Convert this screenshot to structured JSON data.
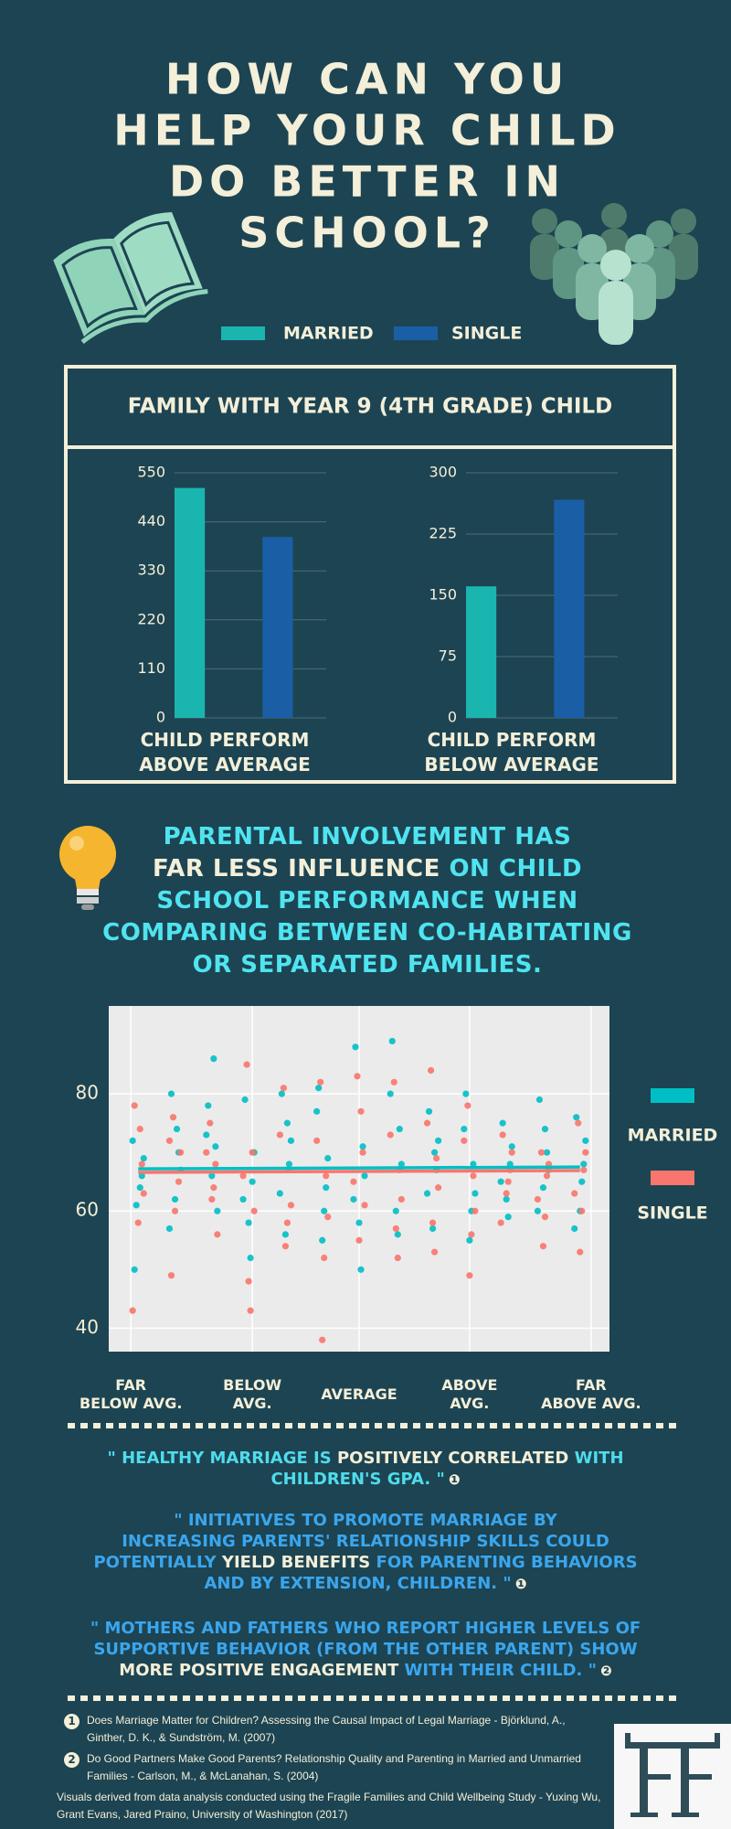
{
  "title_lines": [
    "HOW CAN YOU",
    "HELP YOUR CHILD",
    "DO BETTER IN",
    "SCHOOL?"
  ],
  "panel_title": "FAMILY WITH YEAR 9 (4TH GRADE) CHILD",
  "chart_data": [
    {
      "type": "bar",
      "xlabel": "CHILD PERFORM\nABOVE AVERAGE",
      "ylim": [
        0,
        550
      ],
      "yticks": [
        0,
        110,
        220,
        330,
        440,
        550
      ],
      "grid": true,
      "series": [
        {
          "name": "MARRIED",
          "color": "#1bb5b0",
          "values": [
            516
          ]
        },
        {
          "name": "SINGLE",
          "color": "#1a5ea6",
          "values": [
            406
          ]
        }
      ]
    },
    {
      "type": "bar",
      "xlabel": "CHILD PERFORM\nBELOW AVERAGE",
      "ylim": [
        0,
        300
      ],
      "yticks": [
        0,
        75,
        150,
        225,
        300
      ],
      "grid": true,
      "series": [
        {
          "color": "#1bb5b0",
          "values": [
            161
          ]
        },
        {
          "color": "#1a5ea6",
          "values": [
            267
          ]
        }
      ]
    },
    {
      "type": "scatter",
      "xlim": [
        0.2,
        13.8
      ],
      "ylim": [
        36,
        95
      ],
      "yticks": [
        40,
        60,
        80
      ],
      "grid": true,
      "xticks": [
        {
          "value": 0.8,
          "label": "FAR\nBELOW AVG."
        },
        {
          "value": 4.1,
          "label": "BELOW\nAVG."
        },
        {
          "value": 7,
          "label": "AVERAGE"
        },
        {
          "value": 10,
          "label": "ABOVE\nAVG."
        },
        {
          "value": 13.3,
          "label": "FAR\nABOVE AVG."
        }
      ],
      "series": [
        {
          "name": "MARRIED",
          "color": "#00bfc4",
          "x": [
            0.85,
            1.1,
            0.95,
            1.15,
            0.9,
            1.05,
            1.9,
            2.1,
            2.0,
            2.15,
            1.85,
            2.05,
            2.9,
            3.1,
            3.0,
            3.15,
            2.85,
            3.05,
            3.9,
            4.1,
            4.0,
            4.15,
            3.85,
            4.05,
            4.9,
            5.1,
            5.0,
            5.15,
            4.85,
            5.05,
            5.9,
            6.1,
            6.0,
            6.15,
            5.85,
            6.05,
            6.9,
            7.1,
            7.0,
            7.15,
            6.85,
            7.05,
            7.9,
            8.1,
            8.0,
            8.15,
            7.85,
            8.05,
            8.9,
            9.1,
            9.0,
            9.15,
            8.85,
            9.05,
            9.9,
            10.1,
            10.0,
            10.15,
            9.85,
            10.05,
            10.9,
            11.1,
            11.0,
            11.15,
            10.85,
            11.05,
            11.9,
            12.1,
            12.0,
            12.15,
            11.85,
            12.05,
            12.9,
            13.1,
            13.0,
            13.15,
            12.85,
            13.05
          ],
          "values": [
            72,
            66,
            61,
            69,
            50,
            64,
            80,
            70,
            62,
            67,
            57,
            74,
            78,
            71,
            66,
            60,
            73,
            86,
            79,
            65,
            58,
            70,
            62,
            52,
            80,
            68,
            56,
            72,
            63,
            75,
            81,
            64,
            55,
            69,
            77,
            60,
            88,
            71,
            58,
            66,
            62,
            50,
            89,
            74,
            60,
            68,
            80,
            56,
            77,
            67,
            57,
            72,
            63,
            70,
            80,
            68,
            55,
            63,
            74,
            60,
            75,
            68,
            62,
            71,
            65,
            59,
            79,
            70,
            64,
            67,
            60,
            74,
            76,
            68,
            60,
            72,
            57,
            65
          ],
          "trend": {
            "x": [
              1,
              13
            ],
            "values": [
              67.2,
              67.5
            ]
          }
        },
        {
          "name": "SINGLE",
          "color": "#f8766d",
          "x": [
            0.9,
            1.1,
            1.0,
            1.15,
            0.85,
            1.05,
            1.95,
            2.1,
            1.9,
            2.15,
            2.0,
            1.85,
            2.95,
            3.1,
            3.0,
            2.85,
            3.15,
            3.05,
            3.95,
            4.1,
            4.0,
            3.85,
            4.15,
            4.05,
            4.95,
            5.1,
            5.0,
            4.85,
            5.15,
            5.05,
            5.95,
            6.1,
            6.0,
            5.85,
            6.15,
            6.05,
            6.95,
            7.1,
            7.0,
            6.85,
            7.15,
            7.05,
            7.95,
            8.1,
            8.0,
            7.85,
            8.15,
            8.05,
            8.95,
            9.1,
            9.0,
            8.85,
            9.15,
            9.05,
            9.95,
            10.1,
            10.0,
            9.85,
            10.15,
            10.05,
            10.9,
            11.1,
            11.0,
            11.15,
            10.85,
            11.05,
            11.95,
            12.1,
            12.0,
            11.85,
            12.15,
            12.05,
            12.95,
            13.1,
            13.0,
            12.85,
            13.15,
            13.05
          ],
          "values": [
            78,
            68,
            58,
            63,
            43,
            74,
            76,
            65,
            49,
            70,
            60,
            72,
            75,
            68,
            62,
            70,
            56,
            64,
            85,
            70,
            48,
            66,
            60,
            43,
            81,
            67,
            54,
            73,
            61,
            58,
            82,
            66,
            38,
            72,
            59,
            52,
            83,
            70,
            55,
            65,
            61,
            77,
            82,
            67,
            57,
            73,
            62,
            52,
            84,
            69,
            58,
            75,
            64,
            53,
            78,
            66,
            49,
            72,
            60,
            56,
            73,
            67,
            63,
            70,
            58,
            65,
            70,
            66,
            54,
            62,
            68,
            59,
            75,
            67,
            53,
            63,
            70,
            60
          ],
          "trend": {
            "x": [
              1,
              13
            ],
            "values": [
              66.6,
              66.9
            ]
          }
        }
      ]
    }
  ],
  "callout": [
    [
      {
        "text": "PARENTAL INVOLVEMENT HAS",
        "emphasis": false
      }
    ],
    [
      {
        "text": "FAR LESS INFLUENCE",
        "emphasis": true
      },
      {
        "text": " ON CHILD",
        "emphasis": false
      }
    ],
    [
      {
        "text": "SCHOOL PERFORMANCE WHEN",
        "emphasis": false
      }
    ],
    [
      {
        "text": "COMPARING BETWEEN CO-HABITATING",
        "emphasis": false
      }
    ],
    [
      {
        "text": "OR SEPARATED FAMILIES.",
        "emphasis": false
      }
    ]
  ],
  "quotes": [
    {
      "color": "#4fdcec",
      "ref": "❶",
      "lines": [
        [
          {
            "text": "\" HEALTHY MARRIAGE IS ",
            "emphasis": false
          },
          {
            "text": "POSITIVELY CORRELATED",
            "emphasis": true
          },
          {
            "text": " WITH",
            "emphasis": false
          }
        ],
        [
          {
            "text": "CHILDREN'S GPA. \"",
            "emphasis": false
          }
        ]
      ]
    },
    {
      "color": "#3aa6ee",
      "ref": "❶",
      "lines": [
        [
          {
            "text": "\" INITIATIVES TO PROMOTE MARRIAGE BY",
            "emphasis": false
          }
        ],
        [
          {
            "text": "INCREASING PARENTS' RELATIONSHIP SKILLS COULD",
            "emphasis": false
          }
        ],
        [
          {
            "text": "POTENTIALLY ",
            "emphasis": false
          },
          {
            "text": "YIELD BENEFITS",
            "emphasis": true
          },
          {
            "text": " FOR PARENTING BEHAVIORS",
            "emphasis": false
          }
        ],
        [
          {
            "text": "AND BY EXTENSION, CHILDREN. \"",
            "emphasis": false
          }
        ]
      ]
    },
    {
      "color": "#3aa6ee",
      "ref": "❷",
      "lines": [
        [
          {
            "text": "\" MOTHERS AND FATHERS WHO REPORT HIGHER LEVELS OF",
            "emphasis": false
          }
        ],
        [
          {
            "text": "SUPPORTIVE BEHAVIOR (FROM THE OTHER PARENT) SHOW",
            "emphasis": false
          }
        ],
        [
          {
            "text": "MORE POSITIVE ENGAGEMENT",
            "emphasis": true
          },
          {
            "text": " WITH THEIR CHILD. \"",
            "emphasis": false
          }
        ]
      ]
    }
  ],
  "references": [
    {
      "number": "1",
      "text": "Does Marriage Matter for Children? Assessing the Causal Impact of Legal Marriage - Björklund, A., Ginther, D. K., & Sundström, M. (2007)"
    },
    {
      "number": "2",
      "text": "Do Good Partners Make Good Parents? Relationship Quality and Parenting in Married and Unmarried Families - Carlson, M., & McLanahan, S. (2004)"
    }
  ],
  "footer": "Visuals derived from data analysis conducted using the Fragile Families and Child Wellbeing Study - Yuxing Wu, Grant Evans, Jared Praino, University of Washington (2017)"
}
